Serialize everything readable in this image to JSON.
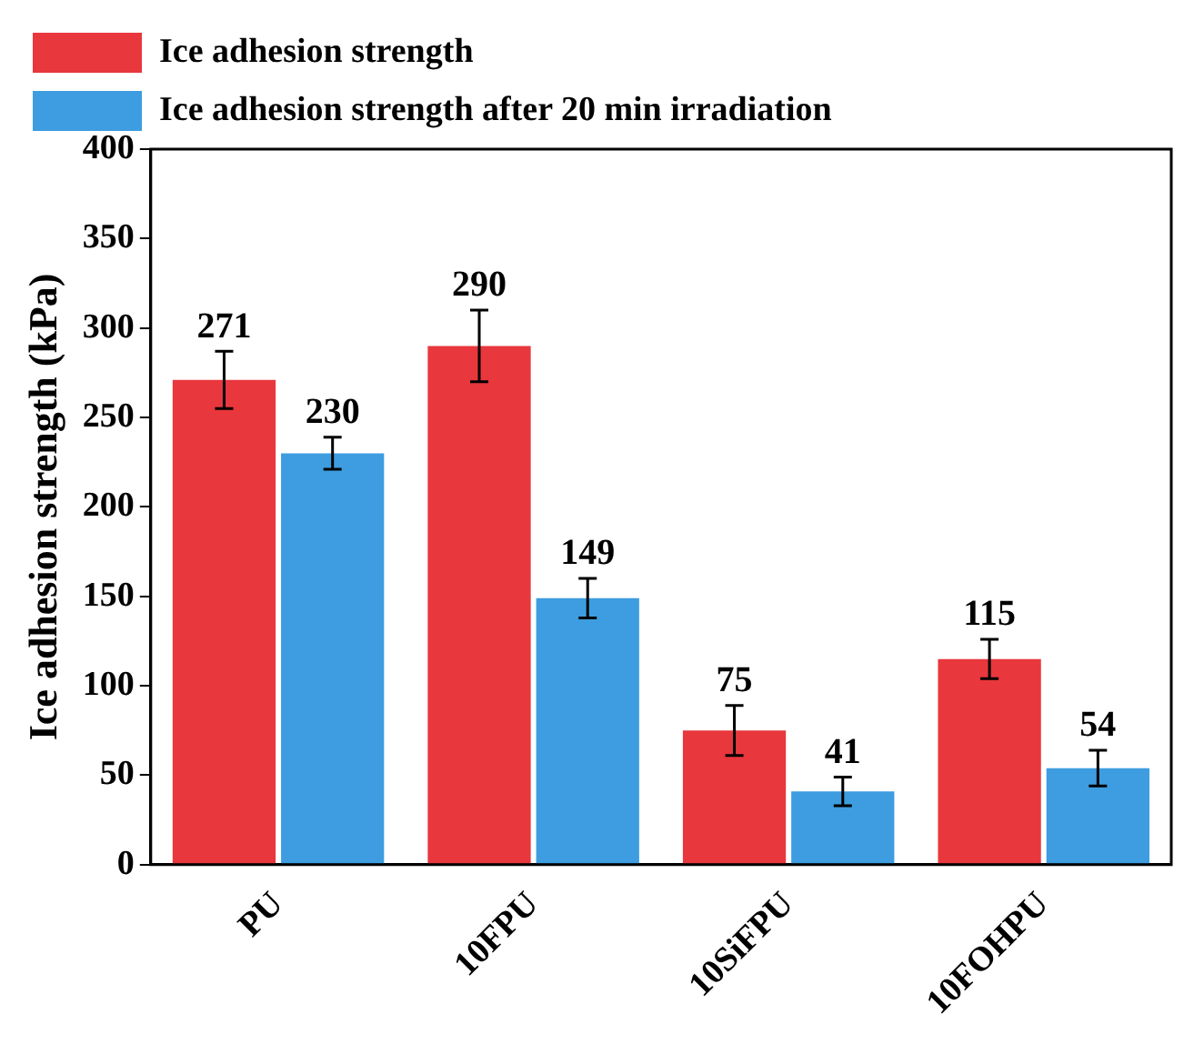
{
  "chart_data": {
    "type": "bar",
    "ylabel": "Ice adhesion strength (kPa)",
    "categories": [
      "PU",
      "10FPU",
      "10SiFPU",
      "10FOHPU"
    ],
    "series": [
      {
        "name": "Ice adhesion strength",
        "color": "#e8373d",
        "values": [
          271,
          290,
          75,
          115
        ],
        "errors": [
          16,
          20,
          14,
          11
        ]
      },
      {
        "name": "Ice adhesion strength after 20 min irradiation",
        "color": "#3d9de0",
        "values": [
          230,
          149,
          41,
          54
        ],
        "errors": [
          9,
          11,
          8,
          10
        ]
      }
    ],
    "ylim": [
      0,
      400
    ],
    "yticks": [
      0,
      50,
      100,
      150,
      200,
      250,
      300,
      350,
      400
    ],
    "grid": false,
    "legend": "top left",
    "data_labels": true
  }
}
